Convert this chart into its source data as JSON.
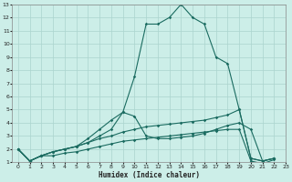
{
  "xlabel": "Humidex (Indice chaleur)",
  "xlim": [
    -0.5,
    23
  ],
  "ylim": [
    1,
    13
  ],
  "xticks": [
    0,
    1,
    2,
    3,
    4,
    5,
    6,
    7,
    8,
    9,
    10,
    11,
    12,
    13,
    14,
    15,
    16,
    17,
    18,
    19,
    20,
    21,
    22,
    23
  ],
  "yticks": [
    1,
    2,
    3,
    4,
    5,
    6,
    7,
    8,
    9,
    10,
    11,
    12,
    13
  ],
  "bg_color": "#cceee8",
  "grid_color": "#aad4ce",
  "line_color": "#1a6b60",
  "series": [
    {
      "x": [
        0,
        1,
        2,
        3,
        4,
        5,
        6,
        7,
        8,
        9,
        10,
        11,
        12,
        13,
        14,
        15,
        16,
        17,
        18,
        19,
        20,
        21,
        22
      ],
      "y": [
        2.0,
        1.1,
        1.5,
        1.8,
        2.0,
        2.2,
        2.8,
        3.5,
        4.2,
        4.8,
        7.5,
        11.5,
        11.5,
        12.0,
        13.0,
        12.0,
        11.5,
        9.0,
        8.5,
        5.0,
        1.3,
        1.1,
        1.3
      ]
    },
    {
      "x": [
        0,
        1,
        2,
        3,
        4,
        5,
        6,
        7,
        8,
        9,
        10,
        11,
        12,
        13,
        14,
        15,
        16,
        17,
        18,
        19,
        20,
        21,
        22
      ],
      "y": [
        2.0,
        1.1,
        1.5,
        1.8,
        2.0,
        2.2,
        2.5,
        3.0,
        3.5,
        4.8,
        4.5,
        3.0,
        2.8,
        2.8,
        2.9,
        3.0,
        3.2,
        3.5,
        3.8,
        4.0,
        3.5,
        1.1,
        1.3
      ]
    },
    {
      "x": [
        0,
        1,
        2,
        3,
        4,
        5,
        6,
        7,
        8,
        9,
        10,
        11,
        12,
        13,
        14,
        15,
        16,
        17,
        18,
        19,
        20,
        21,
        22
      ],
      "y": [
        2.0,
        1.1,
        1.5,
        1.8,
        2.0,
        2.2,
        2.5,
        2.8,
        3.0,
        3.3,
        3.5,
        3.7,
        3.8,
        3.9,
        4.0,
        4.1,
        4.2,
        4.4,
        4.6,
        5.0,
        1.3,
        1.1,
        1.3
      ]
    },
    {
      "x": [
        0,
        1,
        2,
        3,
        4,
        5,
        6,
        7,
        8,
        9,
        10,
        11,
        12,
        13,
        14,
        15,
        16,
        17,
        18,
        19,
        20,
        21,
        22
      ],
      "y": [
        2.0,
        1.1,
        1.5,
        1.5,
        1.7,
        1.8,
        2.0,
        2.2,
        2.4,
        2.6,
        2.7,
        2.8,
        2.9,
        3.0,
        3.1,
        3.2,
        3.3,
        3.4,
        3.5,
        3.5,
        1.1,
        0.9,
        1.2
      ]
    }
  ]
}
